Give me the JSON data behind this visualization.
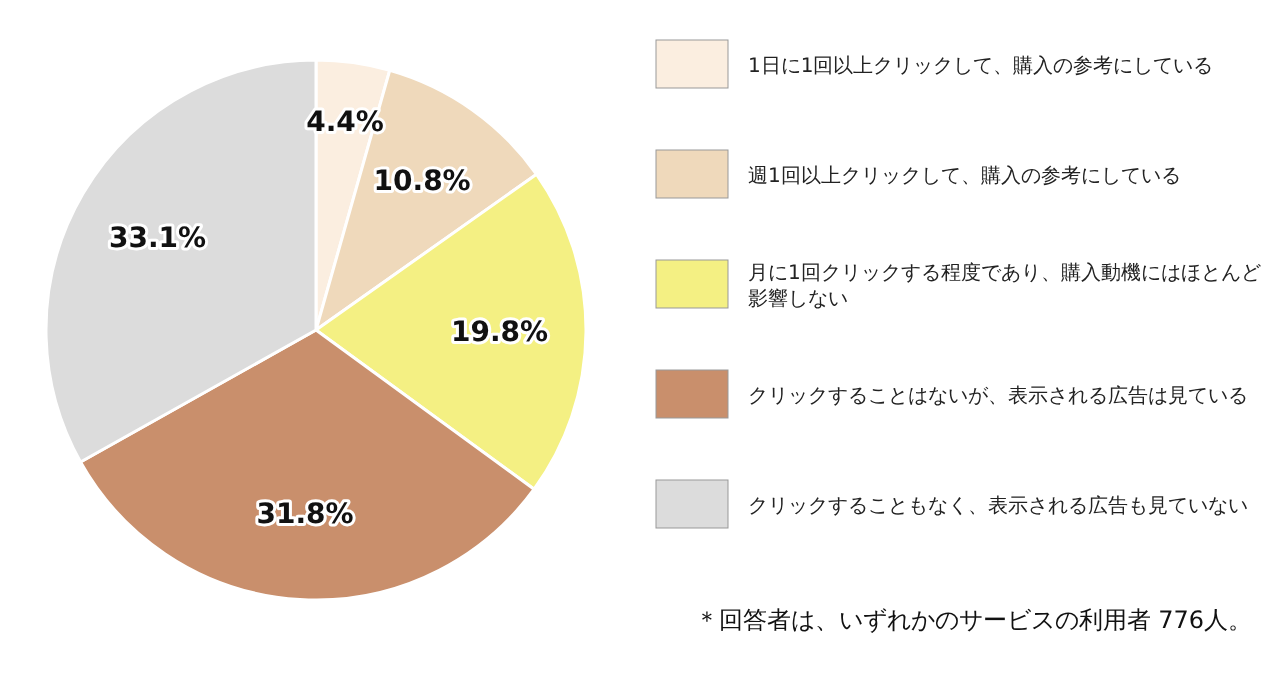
{
  "chart_data": {
    "type": "pie",
    "categories": [
      "1日に1回以上クリックして、購入の参考にしている",
      "週1回以上クリックして、購入の参考にしている",
      "月に1回クリックする程度であり、購入動機にはほとんど影響しない",
      "クリックすることはないが、表示される広告は見ている",
      "クリックすることもなく、表示される広告も見ていない"
    ],
    "values": [
      4.4,
      10.8,
      19.8,
      31.8,
      33.1
    ],
    "value_labels": [
      "4.4%",
      "10.8%",
      "19.8%",
      "31.8%",
      "33.1%"
    ],
    "colors": [
      "#fbeee0",
      "#efd9bb",
      "#f4f083",
      "#c98f6c",
      "#dcdcdc"
    ],
    "legend": "right",
    "annotations": [
      "＊回答者は、いずれかのサービスの利用者 776人。"
    ]
  }
}
